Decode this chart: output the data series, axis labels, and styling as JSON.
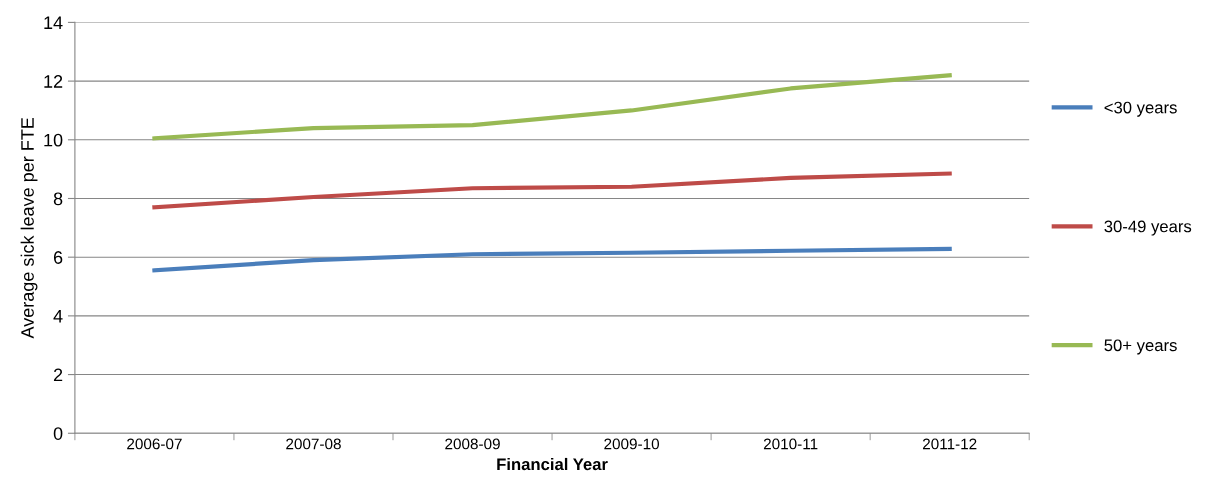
{
  "chart_data": {
    "type": "line",
    "xlabel": "Financial Year",
    "ylabel": "Average sick leave per FTE",
    "categories": [
      "2006-07",
      "2007-08",
      "2008-09",
      "2009-10",
      "2010-11",
      "2011-12"
    ],
    "series": [
      {
        "name": "<30 years",
        "color": "#4a7ebb",
        "values": [
          5.55,
          5.9,
          6.1,
          6.15,
          6.22,
          6.28
        ]
      },
      {
        "name": "30-49 years",
        "color": "#be4b48",
        "values": [
          7.7,
          8.05,
          8.35,
          8.4,
          8.7,
          8.85
        ]
      },
      {
        "name": "50+ years",
        "color": "#98b954",
        "values": [
          10.05,
          10.4,
          10.5,
          11.0,
          11.75,
          12.2
        ]
      }
    ],
    "ylim": [
      0,
      14
    ],
    "yticks": [
      0,
      2,
      4,
      6,
      8,
      10,
      12,
      14
    ],
    "grid": "y",
    "legend": "right",
    "marker": "none",
    "line_style": "solid"
  }
}
